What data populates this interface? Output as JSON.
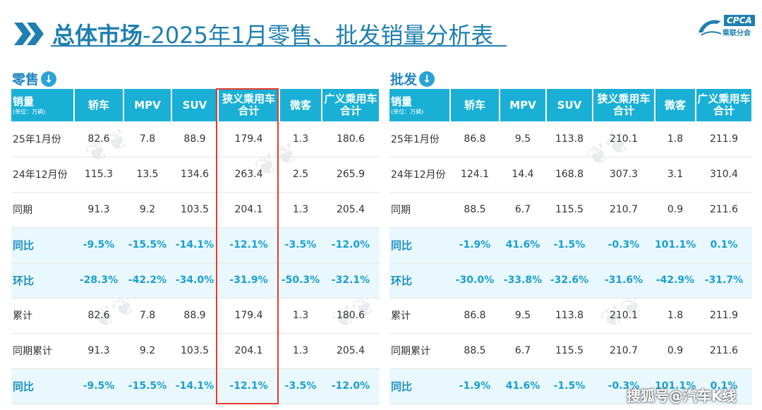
{
  "title": {
    "bold_part": "总体市场",
    "rest_part": "-2025年1月零售、批发销量分析表"
  },
  "logo": {
    "text": "CPCA",
    "sub": "乘联分会"
  },
  "retail": {
    "label": "零售",
    "arrow": "↓",
    "corner_label": "销量",
    "corner_unit": "(单位：万辆)",
    "columns": [
      {
        "l1": "轿车",
        "l2": ""
      },
      {
        "l1": "MPV",
        "l2": ""
      },
      {
        "l1": "SUV",
        "l2": ""
      },
      {
        "l1": "狭义乘用车",
        "l2": "合计"
      },
      {
        "l1": "微客",
        "l2": ""
      },
      {
        "l1": "广义乘用车",
        "l2": "合计"
      }
    ],
    "rows": [
      {
        "label": "25年1月份",
        "highlight": false,
        "values": [
          "82.6",
          "7.8",
          "88.9",
          "179.4",
          "1.3",
          "180.6"
        ]
      },
      {
        "label": "24年12月份",
        "highlight": false,
        "values": [
          "115.3",
          "13.5",
          "134.6",
          "263.4",
          "2.5",
          "265.9"
        ]
      },
      {
        "label": "同期",
        "highlight": false,
        "values": [
          "91.3",
          "9.2",
          "103.5",
          "204.1",
          "1.3",
          "205.4"
        ]
      },
      {
        "label": "同比",
        "highlight": true,
        "values": [
          "-9.5%",
          "-15.5%",
          "-14.1%",
          "-12.1%",
          "-3.5%",
          "-12.0%"
        ]
      },
      {
        "label": "环比",
        "highlight": true,
        "values": [
          "-28.3%",
          "-42.2%",
          "-34.0%",
          "-31.9%",
          "-50.3%",
          "-32.1%"
        ]
      },
      {
        "label": "累计",
        "highlight": false,
        "values": [
          "82.6",
          "7.8",
          "88.9",
          "179.4",
          "1.3",
          "180.6"
        ]
      },
      {
        "label": "同期累计",
        "highlight": false,
        "values": [
          "91.3",
          "9.2",
          "103.5",
          "204.1",
          "1.3",
          "205.4"
        ]
      },
      {
        "label": "同比",
        "highlight": true,
        "values": [
          "-9.5%",
          "-15.5%",
          "-14.1%",
          "-12.1%",
          "-3.5%",
          "-12.0%"
        ]
      }
    ]
  },
  "wholesale": {
    "label": "批发",
    "arrow": "↓",
    "corner_label": "销量",
    "corner_unit": "(单位：万辆)",
    "columns": [
      {
        "l1": "轿车",
        "l2": ""
      },
      {
        "l1": "MPV",
        "l2": ""
      },
      {
        "l1": "SUV",
        "l2": ""
      },
      {
        "l1": "狭义乘用车",
        "l2": "合计"
      },
      {
        "l1": "微客",
        "l2": ""
      },
      {
        "l1": "广义乘用车",
        "l2": "合计"
      }
    ],
    "rows": [
      {
        "label": "25年1月份",
        "highlight": false,
        "values": [
          "86.8",
          "9.5",
          "113.8",
          "210.1",
          "1.8",
          "211.9"
        ]
      },
      {
        "label": "24年12月份",
        "highlight": false,
        "values": [
          "124.1",
          "14.4",
          "168.8",
          "307.3",
          "3.1",
          "310.4"
        ]
      },
      {
        "label": "同期",
        "highlight": false,
        "values": [
          "88.5",
          "6.7",
          "115.5",
          "210.7",
          "0.9",
          "211.6"
        ]
      },
      {
        "label": "同比",
        "highlight": true,
        "values": [
          "-1.9%",
          "41.6%",
          "-1.5%",
          "-0.3%",
          "101.1%",
          "0.1%"
        ]
      },
      {
        "label": "环比",
        "highlight": true,
        "values": [
          "-30.0%",
          "-33.8%",
          "-32.6%",
          "-31.6%",
          "-42.9%",
          "-31.7%"
        ]
      },
      {
        "label": "累计",
        "highlight": false,
        "values": [
          "86.8",
          "9.5",
          "113.8",
          "210.1",
          "1.8",
          "211.9"
        ]
      },
      {
        "label": "同期累计",
        "highlight": false,
        "values": [
          "88.5",
          "6.7",
          "115.5",
          "210.7",
          "0.9",
          "211.6"
        ]
      },
      {
        "label": "同比",
        "highlight": true,
        "values": [
          "-1.9%",
          "41.6%",
          "-1.5%",
          "-0.3%",
          "101.1%",
          "0.1%"
        ]
      }
    ]
  },
  "footer": {
    "watermark": "搜狐号@汽车K线"
  },
  "colors": {
    "header_bg": "#1ab0d6",
    "accent": "#1f7fb0",
    "highlight_text": "#1a9fd2",
    "highlight_bg": "#e9f8fc",
    "red_box": "#e53b2c"
  }
}
